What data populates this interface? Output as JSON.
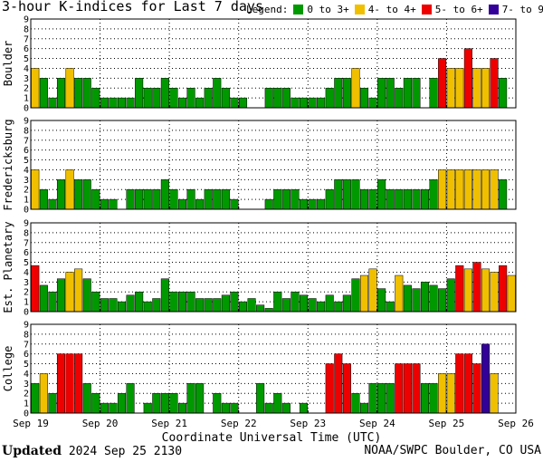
{
  "title": "3-hour K-indices for Last 7 days",
  "legend": {
    "label": "Legend:",
    "items": [
      {
        "label": "0 to 3+",
        "color": "#009900"
      },
      {
        "label": "4- to 4+",
        "color": "#f0c000"
      },
      {
        "label": "5- to 6+",
        "color": "#ee0000"
      },
      {
        "label": "7- to 9",
        "color": "#330099"
      }
    ]
  },
  "footer": {
    "updated_label": "Updated",
    "updated_value": "2024 Sep 25 2130",
    "source": "NOAA/SWPC Boulder, CO USA"
  },
  "chart_data": {
    "type": "bar",
    "xlabel": "Coordinate Universal Time (UTC)",
    "x_ticks": [
      "Sep 19",
      "Sep 20",
      "Sep 21",
      "Sep 22",
      "Sep 23",
      "Sep 24",
      "Sep 25",
      "Sep 26"
    ],
    "ylim": [
      0,
      9
    ],
    "y_ticks": [
      0,
      1,
      2,
      3,
      4,
      5,
      6,
      7,
      8,
      9
    ],
    "bins_per_day": 8,
    "grid": true,
    "panels": [
      {
        "name": "Boulder",
        "values": [
          4,
          3,
          1,
          3,
          4,
          3,
          3,
          2,
          1,
          1,
          1,
          1,
          3,
          2,
          2,
          3,
          2,
          1,
          2,
          1,
          2,
          3,
          2,
          1,
          1,
          0,
          0,
          2,
          2,
          2,
          1,
          1,
          1,
          1,
          2,
          3,
          3,
          4,
          2,
          1,
          3,
          3,
          2,
          3,
          3,
          0,
          3,
          5,
          4,
          4,
          6,
          4,
          4,
          5,
          3,
          0
        ]
      },
      {
        "name": "Fredericksburg",
        "values": [
          4,
          2,
          1,
          3,
          4,
          3,
          3,
          2,
          1,
          1,
          0,
          2,
          2,
          2,
          2,
          3,
          2,
          1,
          2,
          1,
          2,
          2,
          2,
          1,
          0,
          0,
          0,
          1,
          2,
          2,
          2,
          1,
          1,
          1,
          2,
          3,
          3,
          3,
          2,
          2,
          3,
          2,
          2,
          2,
          2,
          2,
          3,
          4,
          4,
          4,
          4,
          4,
          4,
          4,
          3,
          0
        ]
      },
      {
        "name": "Est. Planetary",
        "values": [
          4.67,
          2.67,
          2,
          3.33,
          4,
          4.33,
          3.33,
          2,
          1.33,
          1.33,
          1,
          1.67,
          2,
          1,
          1.33,
          3.33,
          2,
          2,
          2,
          1.33,
          1.33,
          1.33,
          1.67,
          2,
          1,
          1.33,
          0.67,
          0.33,
          2,
          1.33,
          2,
          1.67,
          1.33,
          1,
          1.67,
          1,
          1.67,
          3.33,
          3.67,
          4.33,
          2.33,
          1,
          3.67,
          2.67,
          2.33,
          3,
          2.67,
          2.33,
          3.33,
          4.67,
          4.33,
          5,
          4.33,
          4,
          4.67,
          3.67
        ]
      },
      {
        "name": "College",
        "values": [
          3,
          4,
          2,
          6,
          6,
          6,
          3,
          2,
          1,
          1,
          2,
          3,
          0,
          1,
          2,
          2,
          2,
          1,
          3,
          3,
          0,
          2,
          1,
          1,
          0,
          0,
          3,
          1,
          2,
          1,
          0,
          1,
          0,
          0,
          5,
          6,
          5,
          2,
          1,
          3,
          3,
          3,
          5,
          5,
          5,
          3,
          3,
          4,
          4,
          6,
          6,
          5,
          7,
          4,
          0,
          0
        ]
      }
    ]
  }
}
